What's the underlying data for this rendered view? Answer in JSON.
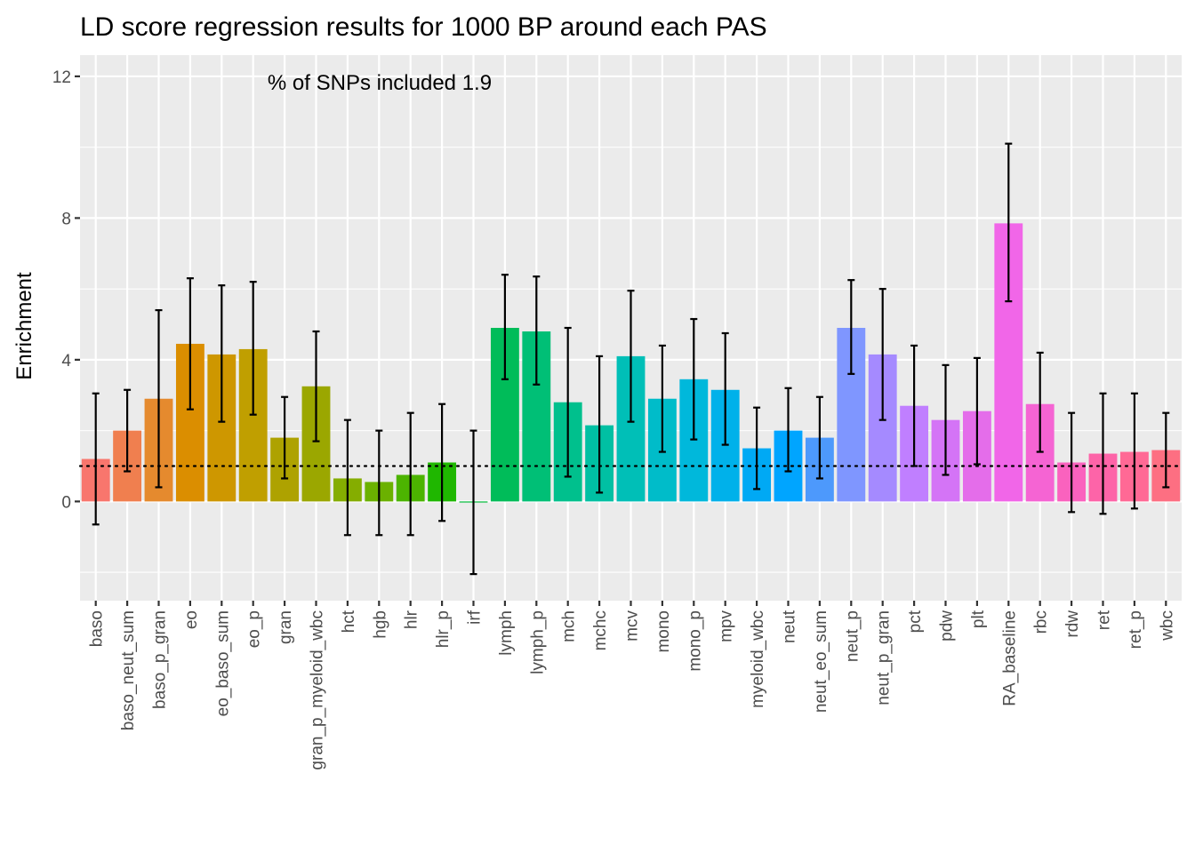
{
  "chart_data": {
    "type": "bar",
    "title": "LD score regression results for 1000 BP around each PAS",
    "xlabel": "",
    "ylabel": "Enrichment",
    "annotation": "% of SNPs included 1.9",
    "reference_line": 1,
    "ylim": [
      -2.8,
      12.6
    ],
    "yticks": [
      0,
      4,
      8,
      12
    ],
    "grid": true,
    "legend": "none",
    "categories": [
      "baso",
      "baso_neut_sum",
      "baso_p_gran",
      "eo",
      "eo_baso_sum",
      "eo_p",
      "gran",
      "gran_p_myeloid_wbc",
      "hct",
      "hgb",
      "hlr",
      "hlr_p",
      "irf",
      "lymph",
      "lymph_p",
      "mch",
      "mchc",
      "mcv",
      "mono",
      "mono_p",
      "mpv",
      "myeloid_wbc",
      "neut",
      "neut_eo_sum",
      "neut_p",
      "neut_p_gran",
      "pct",
      "pdw",
      "plt",
      "RA_baseline",
      "rbc",
      "rdw",
      "ret",
      "ret_p",
      "wbc"
    ],
    "values": [
      1.2,
      2.0,
      2.9,
      4.45,
      4.15,
      4.3,
      1.8,
      3.25,
      0.65,
      0.55,
      0.75,
      1.1,
      -0.03,
      4.9,
      4.8,
      2.8,
      2.15,
      4.1,
      2.9,
      3.45,
      3.15,
      1.5,
      2.0,
      1.8,
      4.9,
      4.15,
      2.7,
      2.3,
      2.55,
      7.85,
      2.75,
      1.1,
      1.35,
      1.4,
      1.45
    ],
    "error_low": [
      -0.65,
      0.85,
      0.4,
      2.6,
      2.25,
      2.45,
      0.65,
      1.7,
      -0.95,
      -0.95,
      -0.95,
      -0.55,
      -2.05,
      3.45,
      3.3,
      0.7,
      0.25,
      2.25,
      1.4,
      1.75,
      1.6,
      0.35,
      0.85,
      0.65,
      3.6,
      2.3,
      1.0,
      0.75,
      1.05,
      5.65,
      1.4,
      -0.3,
      -0.35,
      -0.2,
      0.4
    ],
    "error_high": [
      3.05,
      3.15,
      5.4,
      6.3,
      6.1,
      6.2,
      2.95,
      4.8,
      2.3,
      2.0,
      2.5,
      2.75,
      2.0,
      6.4,
      6.35,
      4.9,
      4.1,
      5.95,
      4.4,
      5.15,
      4.75,
      2.65,
      3.2,
      2.95,
      6.25,
      6.0,
      4.4,
      3.85,
      4.05,
      10.1,
      4.2,
      2.5,
      3.05,
      3.05,
      2.5
    ],
    "colors": [
      "#F8766D",
      "#F07F4F",
      "#E58A2E",
      "#DB8E00",
      "#CE9700",
      "#C09F00",
      "#AEA200",
      "#9BA700",
      "#85AD00",
      "#6BB100",
      "#4CB400",
      "#1FB700",
      "#00BA38",
      "#00BC59",
      "#00BF76",
      "#00C08D",
      "#00C0A3",
      "#00BFB7",
      "#00BCC9",
      "#00B8DB",
      "#00B1EA",
      "#00A9F4",
      "#00A5FF",
      "#4D99FC",
      "#7F96FF",
      "#A58AFF",
      "#C07FFF",
      "#D474F6",
      "#E46DEA",
      "#F166E8",
      "#F564D3",
      "#FA62BE",
      "#FD64A8",
      "#FF6995",
      "#FD6F82"
    ]
  }
}
